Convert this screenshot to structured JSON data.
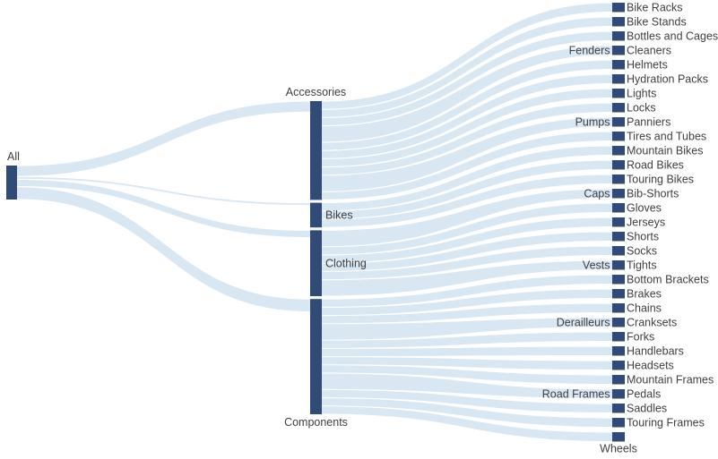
{
  "chart_data": {
    "type": "sankey",
    "title": "",
    "legend": "none",
    "grid": "off",
    "colors": {
      "node": "#2F4B76",
      "flow": "#D9E7F3",
      "label": "#404040",
      "background": "#FFFFFF"
    },
    "root": {
      "label": "All"
    },
    "categories": [
      {
        "label": "Accessories",
        "value": 12,
        "label_side": "top"
      },
      {
        "label": "Bikes",
        "value": 3,
        "label_side": "right"
      },
      {
        "label": "Clothing",
        "value": 8,
        "label_side": "right"
      },
      {
        "label": "Components",
        "value": 14,
        "label_side": "bottom"
      }
    ],
    "links": [
      {
        "source": "All",
        "target": "Accessories",
        "value": 12
      },
      {
        "source": "All",
        "target": "Bikes",
        "value": 3
      },
      {
        "source": "All",
        "target": "Clothing",
        "value": 8
      },
      {
        "source": "All",
        "target": "Components",
        "value": 14
      },
      {
        "source": "Accessories",
        "target": "Bike Racks",
        "value": 1
      },
      {
        "source": "Accessories",
        "target": "Bike Stands",
        "value": 1
      },
      {
        "source": "Accessories",
        "target": "Bottles and Cages",
        "value": 1
      },
      {
        "source": "Accessories",
        "target": "Cleaners",
        "value": 1
      },
      {
        "source": "Accessories",
        "target": "Fenders",
        "value": 1
      },
      {
        "source": "Accessories",
        "target": "Helmets",
        "value": 1
      },
      {
        "source": "Accessories",
        "target": "Hydration Packs",
        "value": 1
      },
      {
        "source": "Accessories",
        "target": "Lights",
        "value": 1
      },
      {
        "source": "Accessories",
        "target": "Locks",
        "value": 1
      },
      {
        "source": "Accessories",
        "target": "Panniers",
        "value": 1
      },
      {
        "source": "Accessories",
        "target": "Pumps",
        "value": 1
      },
      {
        "source": "Accessories",
        "target": "Tires and Tubes",
        "value": 1
      },
      {
        "source": "Bikes",
        "target": "Mountain Bikes",
        "value": 1
      },
      {
        "source": "Bikes",
        "target": "Road Bikes",
        "value": 1
      },
      {
        "source": "Bikes",
        "target": "Touring Bikes",
        "value": 1
      },
      {
        "source": "Clothing",
        "target": "Bib-Shorts",
        "value": 1
      },
      {
        "source": "Clothing",
        "target": "Caps",
        "value": 1
      },
      {
        "source": "Clothing",
        "target": "Gloves",
        "value": 1
      },
      {
        "source": "Clothing",
        "target": "Jerseys",
        "value": 1
      },
      {
        "source": "Clothing",
        "target": "Shorts",
        "value": 1
      },
      {
        "source": "Clothing",
        "target": "Socks",
        "value": 1
      },
      {
        "source": "Clothing",
        "target": "Tights",
        "value": 1
      },
      {
        "source": "Clothing",
        "target": "Vests",
        "value": 1
      },
      {
        "source": "Components",
        "target": "Bottom Brackets",
        "value": 1
      },
      {
        "source": "Components",
        "target": "Brakes",
        "value": 1
      },
      {
        "source": "Components",
        "target": "Chains",
        "value": 1
      },
      {
        "source": "Components",
        "target": "Cranksets",
        "value": 1
      },
      {
        "source": "Components",
        "target": "Derailleurs",
        "value": 1
      },
      {
        "source": "Components",
        "target": "Forks",
        "value": 1
      },
      {
        "source": "Components",
        "target": "Handlebars",
        "value": 1
      },
      {
        "source": "Components",
        "target": "Headsets",
        "value": 1
      },
      {
        "source": "Components",
        "target": "Mountain Frames",
        "value": 1
      },
      {
        "source": "Components",
        "target": "Pedals",
        "value": 1
      },
      {
        "source": "Components",
        "target": "Road Frames",
        "value": 1
      },
      {
        "source": "Components",
        "target": "Saddles",
        "value": 1
      },
      {
        "source": "Components",
        "target": "Touring Frames",
        "value": 1
      },
      {
        "source": "Components",
        "target": "Wheels",
        "value": 1
      }
    ],
    "rows": [
      {
        "group": 0,
        "right": "Bike Racks"
      },
      {
        "group": 0,
        "right": "Bike Stands"
      },
      {
        "group": 0,
        "right": "Bottles and Cages"
      },
      {
        "group": 0,
        "right": "Cleaners",
        "left": "Fenders"
      },
      {
        "group": 0,
        "right": "Helmets"
      },
      {
        "group": 0,
        "right": "Hydration Packs"
      },
      {
        "group": 0,
        "right": "Lights"
      },
      {
        "group": 0,
        "right": "Locks"
      },
      {
        "group": 0,
        "right": "Panniers",
        "left": "Pumps"
      },
      {
        "group": 0,
        "right": "Tires and Tubes"
      },
      {
        "group": 1,
        "right": "Mountain Bikes"
      },
      {
        "group": 1,
        "right": "Road Bikes"
      },
      {
        "group": 1,
        "right": "Touring Bikes"
      },
      {
        "group": 2,
        "right": "Bib-Shorts",
        "left": "Caps"
      },
      {
        "group": 2,
        "right": "Gloves"
      },
      {
        "group": 2,
        "right": "Jerseys"
      },
      {
        "group": 2,
        "right": "Shorts"
      },
      {
        "group": 2,
        "right": "Socks"
      },
      {
        "group": 2,
        "right": "Tights",
        "left": "Vests"
      },
      {
        "group": 3,
        "right": "Bottom Brackets"
      },
      {
        "group": 3,
        "right": "Brakes"
      },
      {
        "group": 3,
        "right": "Chains"
      },
      {
        "group": 3,
        "right": "Cranksets",
        "left": "Derailleurs"
      },
      {
        "group": 3,
        "right": "Forks"
      },
      {
        "group": 3,
        "right": "Handlebars"
      },
      {
        "group": 3,
        "right": "Headsets"
      },
      {
        "group": 3,
        "right": "Mountain Frames"
      },
      {
        "group": 3,
        "right": "Pedals",
        "left": "Road Frames"
      },
      {
        "group": 3,
        "right": "Saddles"
      },
      {
        "group": 3,
        "right": "Touring Frames"
      },
      {
        "group": 3,
        "right": "Wheels",
        "label_below": true
      }
    ]
  }
}
